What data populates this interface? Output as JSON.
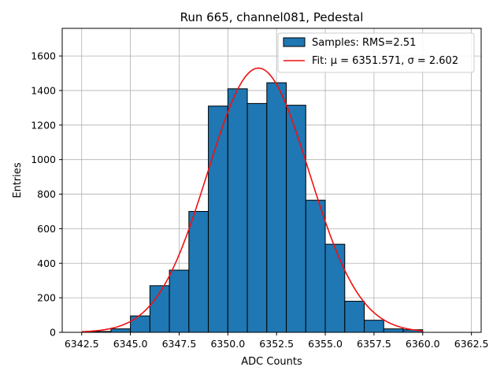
{
  "chart_data": {
    "type": "bar",
    "title": "Run 665, channel081, Pedestal",
    "xlabel": "ADC Counts",
    "ylabel": "Entries",
    "xlim": [
      6341.5,
      6363.0
    ],
    "ylim": [
      0,
      1760
    ],
    "grid": true,
    "legend_position": "top-right",
    "xticks": [
      6342.5,
      6345.0,
      6347.5,
      6350.0,
      6352.5,
      6355.0,
      6357.5,
      6360.0,
      6362.5
    ],
    "xtick_labels": [
      "6342.5",
      "6345.0",
      "6347.5",
      "6350.0",
      "6352.5",
      "6355.0",
      "6357.5",
      "6360.0",
      "6362.5"
    ],
    "yticks": [
      0,
      200,
      400,
      600,
      800,
      1000,
      1200,
      1400,
      1600
    ],
    "ytick_labels": [
      "0",
      "200",
      "400",
      "600",
      "800",
      "1000",
      "1200",
      "1400",
      "1600"
    ],
    "bin_width": 1,
    "bins": [
      {
        "x0": 6343,
        "count": 5
      },
      {
        "x0": 6344,
        "count": 20
      },
      {
        "x0": 6345,
        "count": 95
      },
      {
        "x0": 6346,
        "count": 270
      },
      {
        "x0": 6347,
        "count": 360
      },
      {
        "x0": 6348,
        "count": 700
      },
      {
        "x0": 6349,
        "count": 1310
      },
      {
        "x0": 6350,
        "count": 1410
      },
      {
        "x0": 6351,
        "count": 1325
      },
      {
        "x0": 6352,
        "count": 1445
      },
      {
        "x0": 6353,
        "count": 1315
      },
      {
        "x0": 6354,
        "count": 765
      },
      {
        "x0": 6355,
        "count": 510
      },
      {
        "x0": 6356,
        "count": 180
      },
      {
        "x0": 6357,
        "count": 70
      },
      {
        "x0": 6358,
        "count": 20
      },
      {
        "x0": 6359,
        "count": 15
      }
    ],
    "fit": {
      "mu": 6351.571,
      "sigma": 2.602,
      "amplitude": 1530,
      "x_range": [
        6342.5,
        6360.0
      ]
    },
    "series": [
      {
        "name": "Samples: RMS=2.51",
        "kind": "histogram",
        "color": "#1f77b4"
      },
      {
        "name": "Fit: μ = 6351.571, σ = 2.602",
        "kind": "line",
        "color": "#e41a1c"
      }
    ]
  },
  "colors": {
    "bar_fill": "#1f77b4",
    "bar_edge": "#000000",
    "fit_line": "#ee1111",
    "grid": "#b0b0b0"
  }
}
